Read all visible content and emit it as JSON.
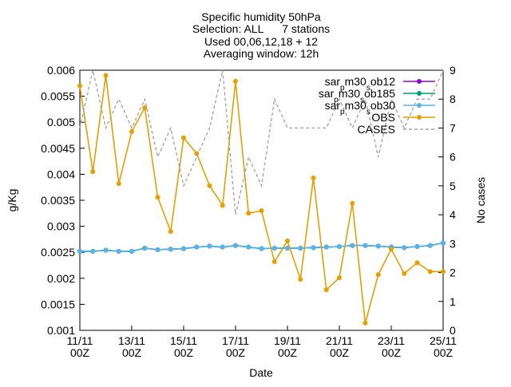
{
  "chart_data": {
    "type": "line",
    "title": [
      "Specific humidity 50hPa",
      "Selection: ALL      7 stations",
      "Used 00,06,12,18 + 12",
      "Averaging window: 12h"
    ],
    "xlabel": "Date",
    "ylabel": "g/Kg",
    "y2label": "No cases",
    "categories": [
      [
        "11/11",
        "00Z"
      ],
      null,
      [
        "13/11",
        "00Z"
      ],
      null,
      null,
      null,
      null,
      null,
      null,
      null,
      null,
      null,
      null,
      null,
      null,
      null,
      null,
      null,
      null,
      null,
      null,
      null,
      null,
      null,
      null,
      null,
      null,
      null,
      null
    ],
    "xticks": [
      {
        "index": 0,
        "label": [
          "11/11",
          "00Z"
        ]
      },
      {
        "index": 4,
        "label": [
          "13/11",
          "00Z"
        ]
      },
      {
        "index": 8,
        "label": [
          "15/11",
          "00Z"
        ]
      },
      {
        "index": 12,
        "label": [
          "17/11",
          "00Z"
        ]
      },
      {
        "index": 16,
        "label": [
          "19/11",
          "00Z"
        ]
      },
      {
        "index": 20,
        "label": [
          "21/11",
          "00Z"
        ]
      },
      {
        "index": 24,
        "label": [
          "23/11",
          "00Z"
        ]
      },
      {
        "index": 28,
        "label": [
          "25/11",
          "00Z"
        ]
      }
    ],
    "ylim": [
      0.001,
      0.006
    ],
    "yticks": [
      0.001,
      0.0015,
      0.002,
      0.0025,
      0.003,
      0.0035,
      0.004,
      0.0045,
      0.005,
      0.0055,
      0.006
    ],
    "y2lim": [
      0,
      9
    ],
    "y2ticks": [
      0,
      1,
      2,
      3,
      4,
      5,
      6,
      7,
      8,
      9
    ],
    "legend": "top-right",
    "series": [
      {
        "name": "sar_pm30_sob12",
        "color": "#9400d3",
        "marker": true,
        "dash": false,
        "values": [
          0.00252,
          0.00252,
          0.00254,
          0.00252,
          0.00252,
          0.00258,
          0.00255,
          0.00256,
          0.00257,
          0.0026,
          0.00262,
          0.0026,
          0.00263,
          0.0026,
          0.00257,
          0.00258,
          0.00258,
          0.00258,
          0.00259,
          0.0026,
          0.00261,
          0.00263,
          0.00263,
          0.00262,
          0.0026,
          0.00259,
          0.00261,
          0.00263,
          0.00268
        ]
      },
      {
        "name": "sar_pm30_sob185",
        "color": "#009e73",
        "marker": true,
        "dash": false,
        "values": [
          0.00252,
          0.00252,
          0.00254,
          0.00252,
          0.00252,
          0.00258,
          0.00255,
          0.00256,
          0.00257,
          0.0026,
          0.00262,
          0.0026,
          0.00263,
          0.0026,
          0.00257,
          0.00258,
          0.00258,
          0.00258,
          0.00259,
          0.0026,
          0.00261,
          0.00263,
          0.00263,
          0.00262,
          0.0026,
          0.00259,
          0.00261,
          0.00263,
          0.00268
        ]
      },
      {
        "name": "sar_pm30_sob30",
        "color": "#56b4e9",
        "marker": true,
        "dash": false,
        "values": [
          0.00252,
          0.00252,
          0.00254,
          0.00252,
          0.00252,
          0.00258,
          0.00255,
          0.00256,
          0.00257,
          0.0026,
          0.00262,
          0.0026,
          0.00263,
          0.0026,
          0.00257,
          0.00258,
          0.00258,
          0.00258,
          0.00259,
          0.0026,
          0.00261,
          0.00263,
          0.00263,
          0.00262,
          0.0026,
          0.00259,
          0.00261,
          0.00263,
          0.00268
        ]
      },
      {
        "name": "OBS",
        "color": "#e69f00",
        "marker": true,
        "dash": false,
        "values": [
          0.0057,
          0.00405,
          0.0059,
          0.00382,
          0.00482,
          0.00528,
          0.00356,
          0.0029,
          0.0047,
          0.0044,
          0.00378,
          0.0034,
          0.00579,
          0.00325,
          0.0033,
          0.00232,
          0.00272,
          0.00198,
          0.00393,
          0.00178,
          0.00201,
          0.00344,
          0.00114,
          0.00207,
          0.00256,
          0.00209,
          0.0023,
          0.00213,
          0.00213
        ]
      },
      {
        "name": "CASES",
        "color": "#a0a0a0",
        "marker": false,
        "dash": true,
        "axis": "y2",
        "values": [
          7,
          9,
          7,
          8,
          7,
          8,
          6,
          7,
          5,
          6,
          7,
          9,
          4,
          6,
          5,
          8,
          7,
          7,
          7,
          7,
          8,
          7,
          8,
          6,
          8,
          7,
          8,
          8,
          9
        ]
      }
    ]
  }
}
